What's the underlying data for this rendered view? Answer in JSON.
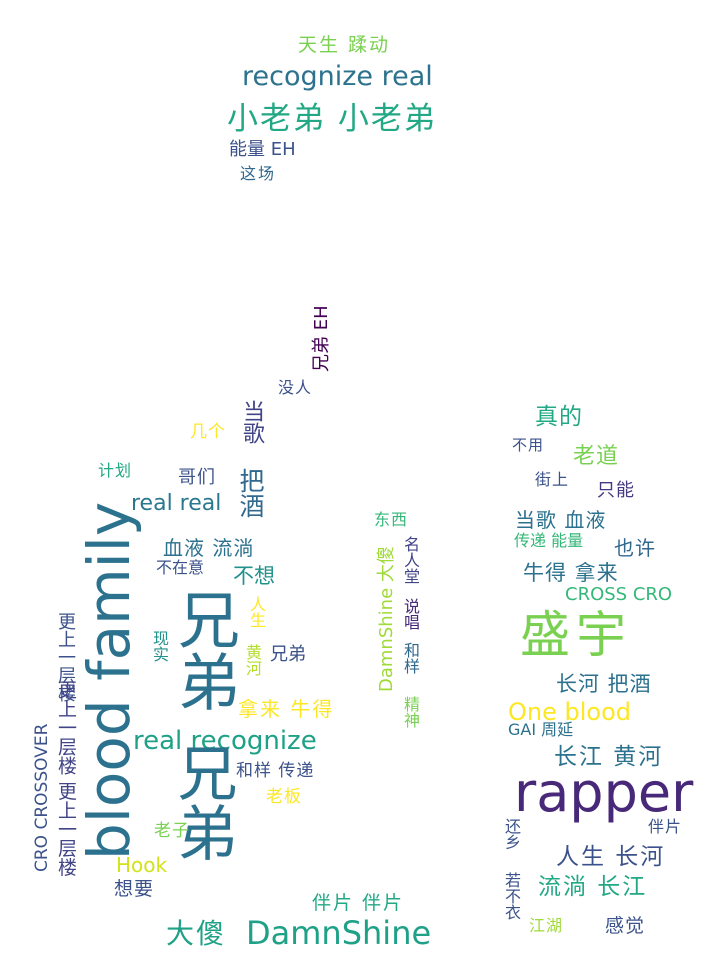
{
  "words": [
    {
      "text": "天生 蹂动",
      "color": "#7ad151"
    },
    {
      "text": "recognize real",
      "color": "#2c728e"
    },
    {
      "text": "小老弟 小老弟",
      "color": "#22a884"
    },
    {
      "text": "能量 EH",
      "color": "#3b528b"
    },
    {
      "text": "这场",
      "color": "#31688e"
    },
    {
      "text": "兄弟 EH",
      "color": "#440154"
    },
    {
      "text": "没人",
      "color": "#3b528b"
    },
    {
      "text": "当歌",
      "color": "#414487"
    },
    {
      "text": "几个",
      "color": "#fde725"
    },
    {
      "text": "计划",
      "color": "#22a884"
    },
    {
      "text": "哥们",
      "color": "#3b528b"
    },
    {
      "text": "real real",
      "color": "#2a788e"
    },
    {
      "text": "把酒",
      "color": "#31688e"
    },
    {
      "text": "血液 流淌",
      "color": "#2c728e"
    },
    {
      "text": "不在意",
      "color": "#3b528b"
    },
    {
      "text": "不想",
      "color": "#21918c"
    },
    {
      "text": "blood family",
      "color": "#2c728e"
    },
    {
      "text": "兄弟",
      "color": "#2c728e"
    },
    {
      "text": "人生",
      "color": "#fde725"
    },
    {
      "text": "现实",
      "color": "#21918c"
    },
    {
      "text": "黄河",
      "color": "#b5de2b"
    },
    {
      "text": "兄弟",
      "color": "#3b528b"
    },
    {
      "text": "更上一层楼",
      "color": "#3b528b"
    },
    {
      "text": "更上一层楼 更上一层楼",
      "color": "#414487"
    },
    {
      "text": "CRO CROSSOVER",
      "color": "#3b528b"
    },
    {
      "text": "拿来 牛得",
      "color": "#fde725"
    },
    {
      "text": "real recognize",
      "color": "#1fa187"
    },
    {
      "text": "兄弟",
      "color": "#31688e"
    },
    {
      "text": "和样 传递",
      "color": "#3b528b"
    },
    {
      "text": "老板",
      "color": "#fde725"
    },
    {
      "text": "老子",
      "color": "#7ad151"
    },
    {
      "text": "Hook",
      "color": "#d2e21b"
    },
    {
      "text": "想要",
      "color": "#3b528b"
    },
    {
      "text": "大傻",
      "color": "#1fa187"
    },
    {
      "text": "DamnShine",
      "color": "#1fa187"
    },
    {
      "text": "伴片 伴片",
      "color": "#22a884"
    },
    {
      "text": "东西",
      "color": "#35b779"
    },
    {
      "text": "DamnShine 大傻",
      "color": "#a0da39"
    },
    {
      "text": "名人堂",
      "color": "#414487"
    },
    {
      "text": "说唱",
      "color": "#482878"
    },
    {
      "text": "和样",
      "color": "#31688e"
    },
    {
      "text": "精神",
      "color": "#7ad151"
    },
    {
      "text": "真的",
      "color": "#22a884"
    },
    {
      "text": "不用",
      "color": "#3b528b"
    },
    {
      "text": "老道",
      "color": "#7ad151"
    },
    {
      "text": "街上",
      "color": "#3b528b"
    },
    {
      "text": "只能",
      "color": "#443983"
    },
    {
      "text": "当歌 血液",
      "color": "#2c728e"
    },
    {
      "text": "传递 能量",
      "color": "#35b779"
    },
    {
      "text": "也许",
      "color": "#31688e"
    },
    {
      "text": "牛得 拿来",
      "color": "#2c728e"
    },
    {
      "text": "CROSS CRO",
      "color": "#35b779"
    },
    {
      "text": "盛宇",
      "color": "#7ad151"
    },
    {
      "text": "长河 把酒",
      "color": "#2c728e"
    },
    {
      "text": "One blood",
      "color": "#fde725"
    },
    {
      "text": "GAI 周延",
      "color": "#2c728e"
    },
    {
      "text": "长江 黄河",
      "color": "#2c728e"
    },
    {
      "text": "rapper",
      "color": "#482878"
    },
    {
      "text": "伴片",
      "color": "#3b528b"
    },
    {
      "text": "还乡",
      "color": "#3b528b"
    },
    {
      "text": "人生 长河",
      "color": "#3b528b"
    },
    {
      "text": "流淌 长江",
      "color": "#22a884"
    },
    {
      "text": "若不衣",
      "color": "#3b528b"
    },
    {
      "text": "江湖",
      "color": "#a0da39"
    },
    {
      "text": "感觉",
      "color": "#3b528b"
    }
  ]
}
